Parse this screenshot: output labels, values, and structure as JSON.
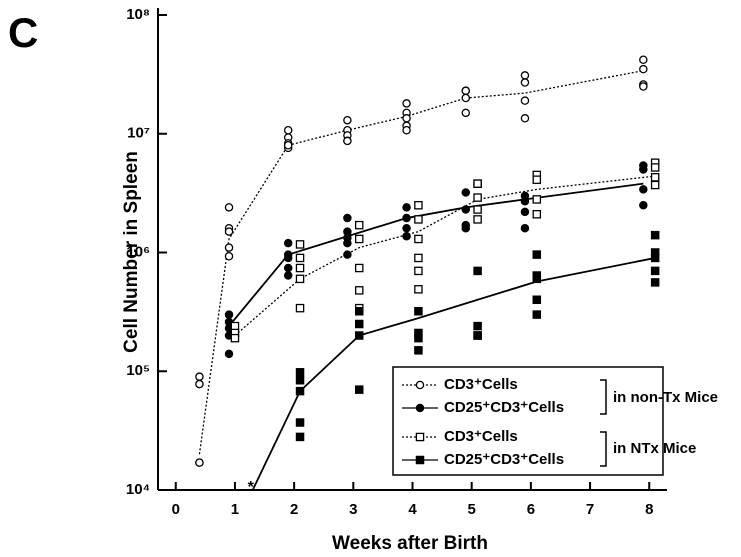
{
  "chart_data": {
    "type": "scatter",
    "panel_label": "C",
    "xlabel": "Weeks after Birth",
    "ylabel": "Cell Number in Spleen",
    "xlim": [
      -0.3,
      8.3
    ],
    "xticks": [
      0,
      1,
      2,
      3,
      4,
      5,
      6,
      7,
      8
    ],
    "ylim": [
      10000,
      100000000
    ],
    "yscale": "log",
    "yticks": [
      {
        "value": 10000,
        "label": "10⁴"
      },
      {
        "value": 100000,
        "label": "10⁵"
      },
      {
        "value": 1000000,
        "label": "10⁶"
      },
      {
        "value": 10000000,
        "label": "10⁷"
      },
      {
        "value": 100000000,
        "label": "10⁸"
      }
    ],
    "legend_position": "lower right",
    "legend_groups": [
      "in non-Tx Mice",
      "in NTx Mice"
    ],
    "star_note": "*",
    "series": [
      {
        "name": "CD3⁺Cells",
        "marker": "open-circle",
        "line": "dotted",
        "color": "#000000",
        "x": [
          0.4,
          0.4,
          0.4,
          0.4,
          0.9,
          0.9,
          0.9,
          0.9,
          0.9,
          1.9,
          1.9,
          1.9,
          1.9,
          1.9,
          2.9,
          2.9,
          2.9,
          2.9,
          2.9,
          3.9,
          3.9,
          3.9,
          3.9,
          3.9,
          4.9,
          4.9,
          4.9,
          4.9,
          5.9,
          5.9,
          5.9,
          5.9,
          7.9,
          7.9,
          7.9,
          7.9
        ],
        "values": [
          90000,
          78000,
          17000,
          17000,
          2400000,
          1600000,
          1500000,
          1100000,
          930000,
          10700000,
          9300000,
          8300000,
          7600000,
          8000000,
          13000000,
          10700000,
          9700000,
          8700000,
          8700000,
          18000000,
          15000000,
          13500000,
          11700000,
          10700000,
          23000000,
          23000000,
          20000000,
          15000000,
          31000000,
          27000000,
          19000000,
          13500000,
          42000000,
          35000000,
          26000000,
          25000000
        ],
        "mean_x": [
          0.4,
          0.9,
          1.9,
          2.9,
          3.9,
          4.9,
          5.9,
          7.9
        ],
        "mean_values": [
          20000,
          1300000,
          8000000,
          10700000,
          14000000,
          20000000,
          22000000,
          34000000
        ]
      },
      {
        "name": "CD25⁺CD3⁺Cells",
        "marker": "filled-circle",
        "line": "solid",
        "color": "#000000",
        "x": [
          0.9,
          0.9,
          0.9,
          0.9,
          0.9,
          1.9,
          1.9,
          1.9,
          1.9,
          1.9,
          2.9,
          2.9,
          2.9,
          2.9,
          2.9,
          3.9,
          3.9,
          3.9,
          3.9,
          4.9,
          4.9,
          4.9,
          4.9,
          5.9,
          5.9,
          5.9,
          5.9,
          7.9,
          7.9,
          7.9,
          7.9
        ],
        "values": [
          300000,
          260000,
          230000,
          200000,
          140000,
          1200000,
          960000,
          900000,
          740000,
          640000,
          1950000,
          1500000,
          1330000,
          1200000,
          960000,
          2400000,
          1950000,
          1600000,
          1370000,
          3200000,
          2300000,
          1700000,
          1600000,
          3000000,
          2700000,
          2200000,
          1600000,
          5400000,
          5000000,
          3400000,
          2500000
        ],
        "mean_x": [
          0.9,
          1.9,
          2.9,
          3.9,
          4.9,
          5.9,
          7.9
        ],
        "mean_values": [
          240000,
          960000,
          1370000,
          1950000,
          2400000,
          2800000,
          3800000
        ]
      },
      {
        "name": "CD3⁺Cells",
        "marker": "open-square",
        "line": "dotted",
        "color": "#000000",
        "x": [
          1.0,
          1.0,
          1.0,
          2.1,
          2.1,
          2.1,
          2.1,
          2.1,
          3.1,
          3.1,
          3.1,
          3.1,
          3.1,
          4.1,
          4.1,
          4.1,
          4.1,
          4.1,
          4.1,
          5.1,
          5.1,
          5.1,
          5.1,
          5.1,
          6.1,
          6.1,
          6.1,
          6.1,
          8.1,
          8.1,
          8.1,
          8.1
        ],
        "values": [
          240000,
          210000,
          190000,
          1170000,
          900000,
          740000,
          600000,
          340000,
          1700000,
          1300000,
          740000,
          480000,
          340000,
          2500000,
          1900000,
          1300000,
          900000,
          700000,
          490000,
          3800000,
          3800000,
          2900000,
          2300000,
          1900000,
          4500000,
          4100000,
          2800000,
          2100000,
          5700000,
          5200000,
          4300000,
          3700000
        ],
        "mean_x": [
          1.0,
          2.1,
          3.1,
          4.1,
          5.1,
          6.1,
          8.1
        ],
        "mean_values": [
          200000,
          600000,
          1100000,
          1500000,
          2800000,
          3400000,
          4400000
        ]
      },
      {
        "name": "CD25⁺CD3⁺Cells",
        "marker": "filled-square",
        "line": "solid",
        "color": "#000000",
        "x": [
          2.1,
          2.1,
          2.1,
          2.1,
          2.1,
          3.1,
          3.1,
          3.1,
          3.1,
          4.1,
          4.1,
          4.1,
          4.1,
          5.1,
          5.1,
          5.1,
          5.1,
          6.1,
          6.1,
          6.1,
          6.1,
          6.1,
          8.1,
          8.1,
          8.1,
          8.1,
          8.1
        ],
        "values": [
          98000,
          84000,
          68000,
          37000,
          28000,
          320000,
          250000,
          200000,
          70000,
          320000,
          210000,
          190000,
          150000,
          700000,
          240000,
          200000,
          200000,
          960000,
          640000,
          600000,
          400000,
          300000,
          1400000,
          1000000,
          900000,
          700000,
          560000
        ],
        "mean_x": [
          1.3,
          2.1,
          3.1,
          4.1,
          5.1,
          6.1,
          8.1
        ],
        "mean_values": [
          10000,
          68000,
          200000,
          280000,
          400000,
          570000,
          900000
        ]
      }
    ]
  }
}
